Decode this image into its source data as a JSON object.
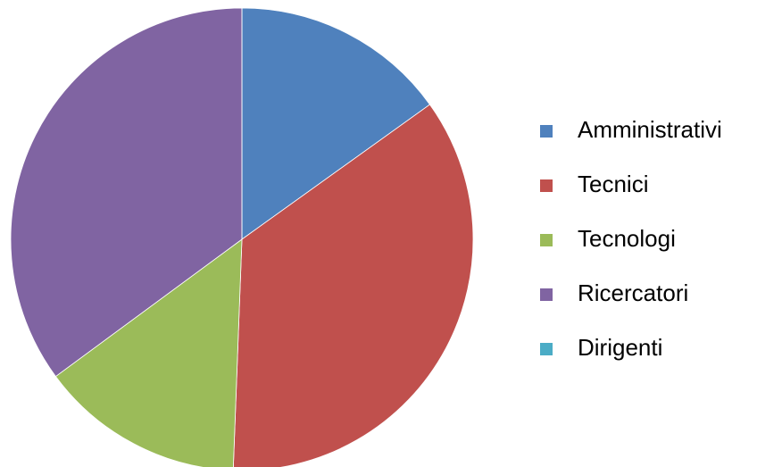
{
  "chart_data": {
    "type": "pie",
    "categories": [
      "Amministrativi",
      "Tecnici",
      "Tecnologi",
      "Ricercatori",
      "Dirigenti"
    ],
    "values": [
      15.1,
      35.5,
      14.3,
      35.1,
      0
    ],
    "colors": [
      "#4f81bd",
      "#c0504d",
      "#9bbb59",
      "#8064a2",
      "#4bacc6"
    ],
    "legend": "right"
  }
}
